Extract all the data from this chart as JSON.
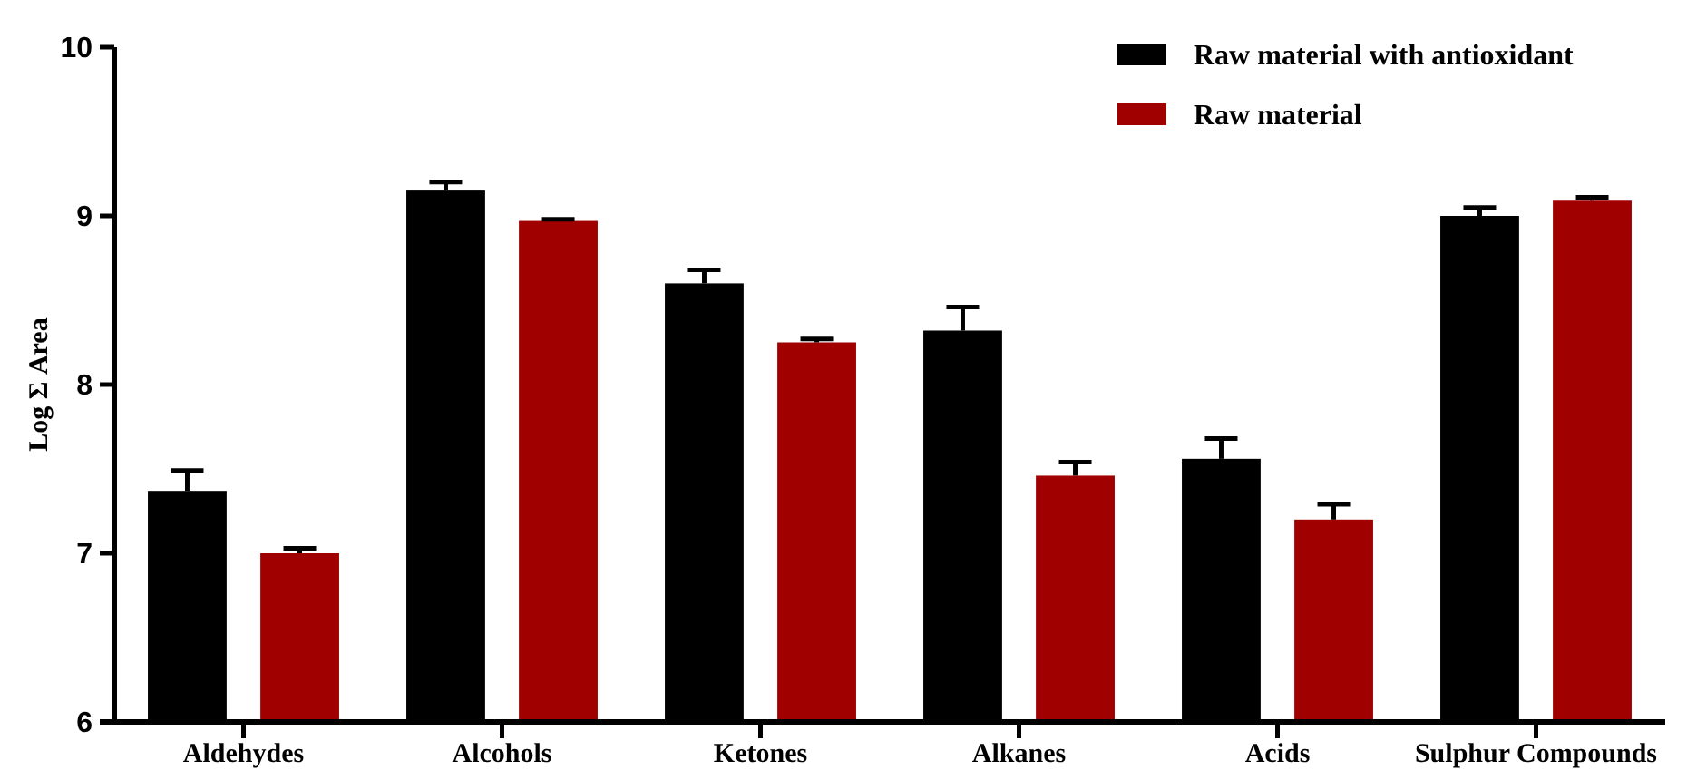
{
  "chart_data": {
    "type": "bar",
    "ylabel": "Log Σ Area",
    "categories": [
      "Aldehydes",
      "Alcohols",
      "Ketones",
      "Alkanes",
      "Acids",
      "Sulphur Compounds"
    ],
    "series": [
      {
        "name": "Raw material with antioxidant",
        "color": "#000000",
        "values": [
          7.37,
          9.15,
          8.6,
          8.32,
          7.56,
          9.0
        ],
        "errors": [
          0.12,
          0.05,
          0.08,
          0.14,
          0.12,
          0.05
        ]
      },
      {
        "name": "Raw material",
        "color": "#a00000",
        "values": [
          7.0,
          8.97,
          8.25,
          7.46,
          7.2,
          9.09
        ],
        "errors": [
          0.03,
          0.01,
          0.02,
          0.08,
          0.09,
          0.02
        ]
      }
    ],
    "ylim": [
      6,
      10
    ],
    "yticks": [
      6,
      7,
      8,
      9,
      10
    ],
    "grid": false,
    "legend": "top right"
  }
}
